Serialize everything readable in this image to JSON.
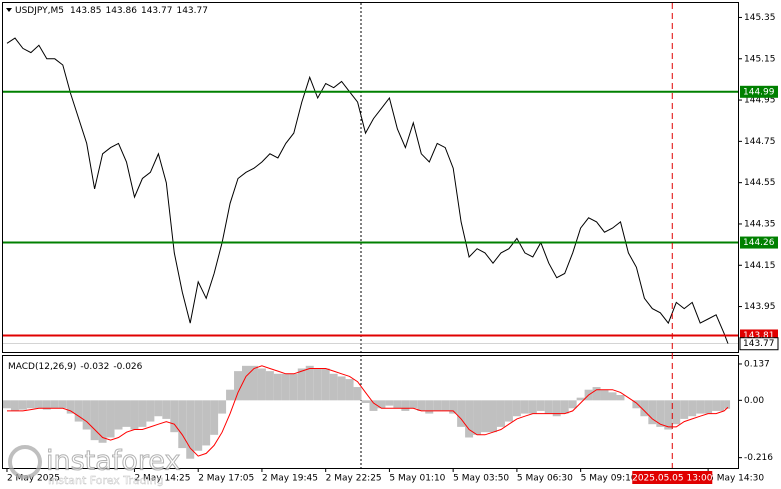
{
  "chart_data": [
    {
      "type": "line",
      "title": "USDJPY,M5",
      "ohlc": [
        143.85,
        143.86,
        143.77,
        143.77
      ],
      "x": [
        0,
        4,
        8,
        12,
        16,
        20,
        24,
        28,
        32,
        36,
        40,
        44,
        48,
        52,
        56,
        60,
        64,
        68,
        72,
        76,
        80,
        84,
        88,
        92,
        96,
        100,
        104,
        108,
        112,
        116,
        120,
        124,
        128,
        132,
        136,
        140,
        144,
        148,
        152,
        156,
        160,
        164,
        168,
        172,
        176,
        180,
        184,
        188,
        192,
        196,
        200,
        204,
        208,
        212,
        216,
        220,
        224,
        228,
        232,
        236,
        240,
        244,
        248,
        252,
        256,
        260,
        264,
        268,
        272,
        276,
        280,
        284,
        288,
        292,
        296,
        300,
        304,
        308,
        312,
        316,
        320,
        324,
        328,
        332,
        336,
        340,
        344,
        348,
        352,
        356,
        360,
        362
      ],
      "series": [
        {
          "name": "USDJPY",
          "color": "#000000",
          "values": [
            145.225,
            145.25,
            145.2,
            145.18,
            145.215,
            145.15,
            145.15,
            145.12,
            144.98,
            144.86,
            144.74,
            144.52,
            144.69,
            144.72,
            144.74,
            144.65,
            144.48,
            144.57,
            144.6,
            144.69,
            144.55,
            144.21,
            144.02,
            143.87,
            144.07,
            143.99,
            144.11,
            144.26,
            144.45,
            144.57,
            144.6,
            144.62,
            144.65,
            144.69,
            144.67,
            144.74,
            144.79,
            144.94,
            145.06,
            144.96,
            145.03,
            145.01,
            145.04,
            144.99,
            144.94,
            144.79,
            144.86,
            144.91,
            144.96,
            144.81,
            144.72,
            144.84,
            144.69,
            144.65,
            144.74,
            144.72,
            144.62,
            144.36,
            144.19,
            144.23,
            144.21,
            144.16,
            144.21,
            144.23,
            144.28,
            144.21,
            144.19,
            144.26,
            144.16,
            144.09,
            144.11,
            144.21,
            144.33,
            144.38,
            144.36,
            144.31,
            144.33,
            144.36,
            144.21,
            144.14,
            143.99,
            143.94,
            143.92,
            143.87,
            143.97,
            143.94,
            143.97,
            143.87,
            143.89,
            143.91,
            143.82,
            143.77
          ]
        }
      ],
      "levels": [
        {
          "value": 144.99,
          "color": "#008000"
        },
        {
          "value": 144.26,
          "color": "#008000"
        },
        {
          "value": 143.81,
          "color": "#e00000"
        }
      ],
      "xlim": [
        -2,
        367
      ],
      "ylim": [
        143.73,
        145.42
      ],
      "yticks": [
        145.35,
        145.15,
        144.95,
        144.75,
        144.55,
        144.35,
        144.15,
        143.95
      ]
    },
    {
      "type": "macd",
      "title": "MACD(12,26,9)",
      "series": [
        {
          "name": "MACD",
          "color": "#c0c0c0",
          "values": [
            -0.03,
            -0.04,
            -0.035,
            -0.03,
            -0.03,
            -0.035,
            -0.03,
            -0.03,
            -0.05,
            -0.08,
            -0.11,
            -0.15,
            -0.16,
            -0.14,
            -0.11,
            -0.1,
            -0.11,
            -0.1,
            -0.08,
            -0.06,
            -0.07,
            -0.12,
            -0.18,
            -0.22,
            -0.19,
            -0.17,
            -0.13,
            -0.05,
            0.04,
            0.11,
            0.13,
            0.13,
            0.12,
            0.11,
            0.1,
            0.1,
            0.1,
            0.12,
            0.13,
            0.12,
            0.12,
            0.1,
            0.09,
            0.08,
            0.05,
            -0.01,
            -0.04,
            -0.03,
            -0.02,
            -0.03,
            -0.04,
            -0.03,
            -0.04,
            -0.05,
            -0.04,
            -0.04,
            -0.05,
            -0.1,
            -0.14,
            -0.13,
            -0.12,
            -0.12,
            -0.1,
            -0.08,
            -0.06,
            -0.05,
            -0.05,
            -0.04,
            -0.05,
            -0.06,
            -0.05,
            -0.03,
            0.01,
            0.04,
            0.05,
            0.04,
            0.03,
            0.02,
            0.0,
            -0.03,
            -0.06,
            -0.09,
            -0.1,
            -0.11,
            -0.09,
            -0.07,
            -0.06,
            -0.05,
            -0.05,
            -0.04,
            -0.04,
            -0.032
          ]
        },
        {
          "name": "Signal",
          "color": "#ff0000",
          "values": [
            -0.04,
            -0.04,
            -0.04,
            -0.035,
            -0.03,
            -0.03,
            -0.03,
            -0.03,
            -0.04,
            -0.06,
            -0.08,
            -0.11,
            -0.14,
            -0.15,
            -0.14,
            -0.12,
            -0.11,
            -0.11,
            -0.1,
            -0.09,
            -0.08,
            -0.09,
            -0.13,
            -0.18,
            -0.21,
            -0.2,
            -0.17,
            -0.12,
            -0.05,
            0.03,
            0.09,
            0.12,
            0.13,
            0.12,
            0.11,
            0.1,
            0.1,
            0.11,
            0.12,
            0.12,
            0.12,
            0.11,
            0.1,
            0.09,
            0.07,
            0.03,
            -0.01,
            -0.03,
            -0.03,
            -0.03,
            -0.03,
            -0.03,
            -0.04,
            -0.04,
            -0.04,
            -0.04,
            -0.04,
            -0.07,
            -0.11,
            -0.13,
            -0.13,
            -0.12,
            -0.11,
            -0.09,
            -0.07,
            -0.06,
            -0.05,
            -0.05,
            -0.05,
            -0.05,
            -0.05,
            -0.04,
            -0.01,
            0.02,
            0.04,
            0.04,
            0.04,
            0.03,
            0.01,
            -0.01,
            -0.04,
            -0.07,
            -0.09,
            -0.1,
            -0.1,
            -0.08,
            -0.07,
            -0.06,
            -0.05,
            -0.05,
            -0.04,
            -0.026
          ]
        }
      ],
      "ylim": [
        -0.255,
        0.167
      ],
      "yticks": [
        0.137,
        {
          "value": 0,
          "label": "0.00"
        },
        -0.216
      ],
      "xticks": [
        {
          "value": 0,
          "label": "2 May 2025"
        },
        {
          "value": 64,
          "label": "2 May 14:25"
        },
        {
          "value": 96,
          "label": "2 May 17:05"
        },
        {
          "value": 128,
          "label": "2 May 19:45"
        },
        {
          "value": 160,
          "label": "2 May 22:25"
        },
        {
          "value": 192,
          "label": "5 May 01:10"
        },
        {
          "value": 224,
          "label": "5 May 03:50"
        },
        {
          "value": 256,
          "label": "5 May 06:30"
        },
        {
          "value": 288,
          "label": "5 May 09:10"
        },
        {
          "value": 352,
          "label": "5 May 14:30"
        }
      ],
      "cursor": {
        "value": 334,
        "label": "2025.05.05 13:00"
      }
    }
  ],
  "watermark": {
    "brand": "instaforex",
    "tagline": "Instant Forex Trading"
  }
}
